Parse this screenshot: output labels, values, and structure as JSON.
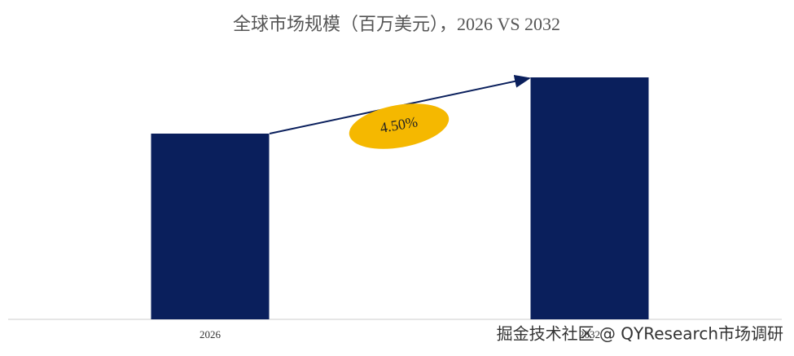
{
  "chart_data": {
    "type": "bar",
    "title": "全球市场规模（百万美元），2026 VS 2032",
    "categories": [
      "2026",
      "2032"
    ],
    "values": [
      228,
      297
    ],
    "color": "#0a1f5c",
    "ylim": [
      0,
      300
    ],
    "annotation": "4.50%",
    "annotation_color": "#f5b800"
  },
  "watermark": "掘金技术社区 @ QYResearch市场调研"
}
